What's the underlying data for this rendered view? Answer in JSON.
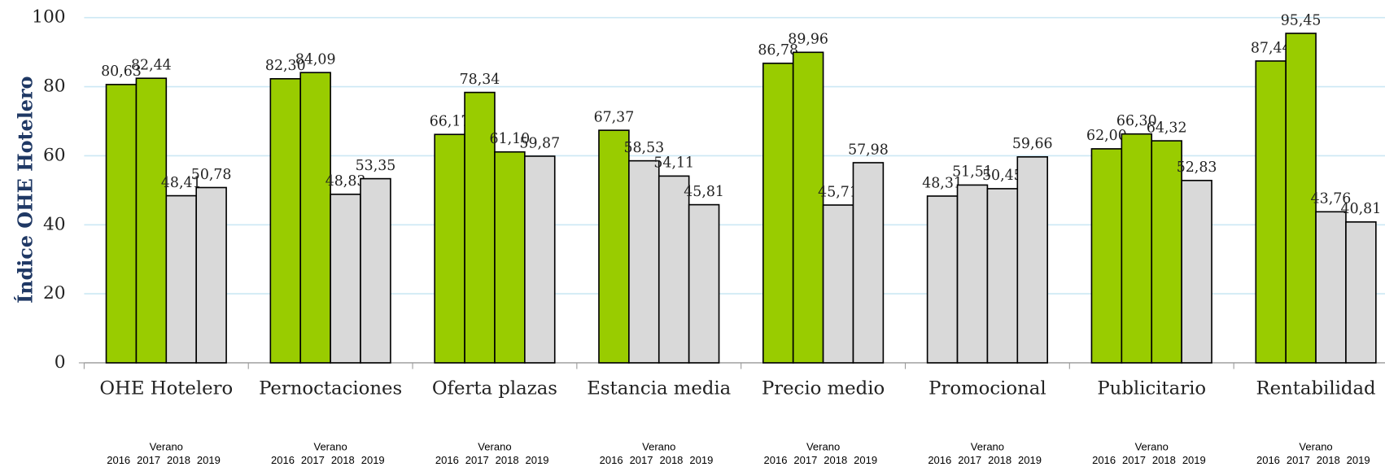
{
  "chart_data": {
    "type": "bar",
    "y_label": "Índice OHE Hotelero",
    "categories": [
      "OHE Hotelero",
      "Pernoctaciones",
      "Oferta plazas",
      "Estancia media",
      "Precio medio",
      "Promocional",
      "Publicitario",
      "Rentabilidad"
    ],
    "sublabel": "Verano",
    "series": [
      {
        "name": "2016",
        "values": [
          80.63,
          82.3,
          66.17,
          67.37,
          86.78,
          48.31,
          62.0,
          87.44
        ],
        "value_labels": [
          "80,63",
          "82,30",
          "66,17",
          "67,37",
          "86,78",
          "48,31",
          "62,00",
          "87,44"
        ],
        "colors": [
          "#99cc00",
          "#99cc00",
          "#99cc00",
          "#99cc00",
          "#99cc00",
          "#d9d9d9",
          "#99cc00",
          "#99cc00"
        ]
      },
      {
        "name": "2017",
        "values": [
          82.44,
          84.09,
          78.34,
          58.53,
          89.96,
          51.51,
          66.3,
          95.45
        ],
        "value_labels": [
          "82,44",
          "84,09",
          "78,34",
          "58,53",
          "89,96",
          "51,51",
          "66,30",
          "95,45"
        ],
        "colors": [
          "#99cc00",
          "#99cc00",
          "#99cc00",
          "#d9d9d9",
          "#99cc00",
          "#d9d9d9",
          "#99cc00",
          "#99cc00"
        ]
      },
      {
        "name": "2018",
        "values": [
          48.41,
          48.83,
          61.1,
          54.11,
          45.71,
          50.45,
          64.32,
          43.76
        ],
        "value_labels": [
          "48,41",
          "48,83",
          "61,10",
          "54,11",
          "45,71",
          "50,45",
          "64,32",
          "43,76"
        ],
        "colors": [
          "#d9d9d9",
          "#d9d9d9",
          "#99cc00",
          "#d9d9d9",
          "#d9d9d9",
          "#d9d9d9",
          "#99cc00",
          "#d9d9d9"
        ]
      },
      {
        "name": "2019",
        "values": [
          50.78,
          53.35,
          59.87,
          45.81,
          57.98,
          59.66,
          52.83,
          40.81
        ],
        "value_labels": [
          "50,78",
          "53,35",
          "59,87",
          "45,81",
          "57,98",
          "59,66",
          "52,83",
          "40,81"
        ],
        "colors": [
          "#d9d9d9",
          "#d9d9d9",
          "#d9d9d9",
          "#d9d9d9",
          "#d9d9d9",
          "#d9d9d9",
          "#d9d9d9",
          "#d9d9d9"
        ]
      }
    ],
    "ylim": [
      0,
      100
    ],
    "yticks": [
      0,
      20,
      40,
      60,
      80,
      100
    ],
    "grid": true,
    "grid_color": "#cce8f4"
  }
}
